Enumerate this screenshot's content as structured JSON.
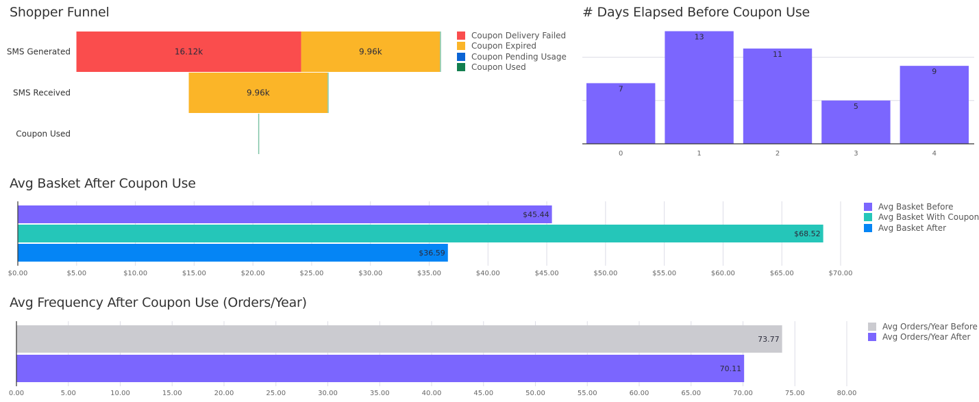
{
  "chart_data": [
    {
      "id": "funnel",
      "type": "bar",
      "subtype": "stacked-funnel",
      "title": "Shopper Funnel",
      "categories": [
        "SMS Generated",
        "SMS Received",
        "Coupon Used"
      ],
      "series": [
        {
          "name": "Coupon Delivery Failed",
          "color": "#fa4d4d",
          "values": [
            16120,
            0,
            0
          ],
          "labels": [
            "16.12k",
            "",
            ""
          ]
        },
        {
          "name": "Coupon Expired",
          "color": "#fbb528",
          "values": [
            9960,
            9960,
            0
          ],
          "labels": [
            "9.96k",
            "9.96k",
            ""
          ]
        },
        {
          "name": "Coupon Pending Usage",
          "color": "#0b64d4",
          "values": [
            0,
            0,
            0
          ],
          "labels": [
            "",
            "",
            ""
          ]
        },
        {
          "name": "Coupon Used",
          "color": "#137f4f",
          "values": [
            13,
            13,
            13
          ],
          "labels": [
            "",
            "",
            ""
          ]
        }
      ],
      "legend": "right"
    },
    {
      "id": "days",
      "type": "bar",
      "title": "# Days Elapsed Before Coupon Use",
      "categories": [
        "0",
        "1",
        "2",
        "3",
        "4"
      ],
      "values": [
        7,
        13,
        11,
        5,
        9
      ],
      "color": "#7b66fe",
      "ylim": [
        0,
        13
      ],
      "gridlines": [
        5,
        10
      ],
      "xlabel": "",
      "ylabel": ""
    },
    {
      "id": "basket",
      "type": "bar",
      "orientation": "horizontal",
      "title": "Avg Basket After Coupon Use",
      "series": [
        {
          "name": "Avg Basket Before",
          "color": "#7b66fe",
          "value": 45.44,
          "label": "$45.44"
        },
        {
          "name": "Avg Basket With Coupon",
          "color": "#25c6b9",
          "value": 68.52,
          "label": "$68.52"
        },
        {
          "name": "Avg Basket After",
          "color": "#0585f5",
          "value": 36.59,
          "label": "$36.59"
        }
      ],
      "xlim": [
        0,
        70
      ],
      "xticks": [
        "$0.00",
        "$5.00",
        "$10.00",
        "$15.00",
        "$20.00",
        "$25.00",
        "$30.00",
        "$35.00",
        "$40.00",
        "$45.00",
        "$50.00",
        "$55.00",
        "$60.00",
        "$65.00",
        "$70.00"
      ],
      "legend": "right"
    },
    {
      "id": "frequency",
      "type": "bar",
      "orientation": "horizontal",
      "title": "Avg Frequency After Coupon Use (Orders/Year)",
      "series": [
        {
          "name": "Avg Orders/Year Before",
          "color": "#cbcbd0",
          "value": 73.77,
          "label": "73.77"
        },
        {
          "name": "Avg Orders/Year After",
          "color": "#7b66fe",
          "value": 70.11,
          "label": "70.11"
        }
      ],
      "xlim": [
        0,
        80
      ],
      "xticks": [
        "0.00",
        "5.00",
        "10.00",
        "15.00",
        "20.00",
        "25.00",
        "30.00",
        "35.00",
        "40.00",
        "45.00",
        "50.00",
        "55.00",
        "60.00",
        "65.00",
        "70.00",
        "75.00",
        "80.00"
      ],
      "legend": "right"
    }
  ]
}
